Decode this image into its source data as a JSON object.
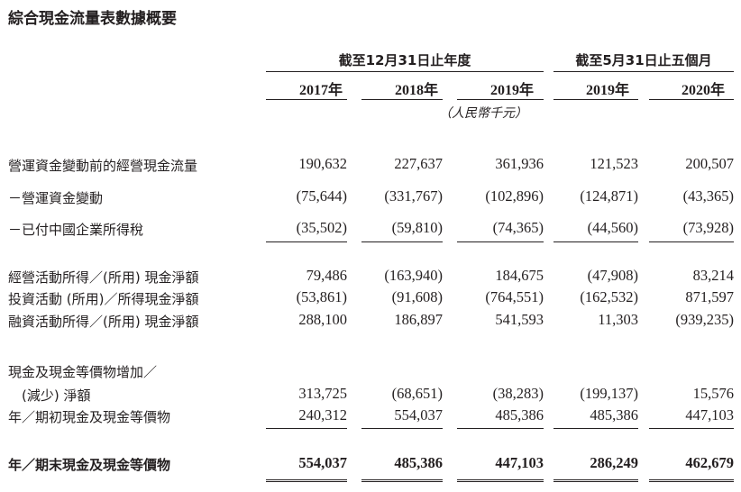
{
  "title": "綜合現金流量表數據概要",
  "column_groups": [
    {
      "label": "截至12月31日止年度"
    },
    {
      "label": "截至5月31日止五個月"
    }
  ],
  "columns": [
    "2017年",
    "2018年",
    "2019年",
    "2019年",
    "2020年"
  ],
  "unit": "（人民幣千元）",
  "rows": [
    {
      "label": "營運資金變動前的經營現金流量",
      "values": [
        "190,632",
        "227,637",
        "361,936",
        "121,523",
        "200,507"
      ]
    },
    {
      "label": "－營運資金變動",
      "values": [
        "(75,644)",
        "(331,767)",
        "(102,896)",
        "(124,871)",
        "(43,365)"
      ]
    },
    {
      "label": "－已付中國企業所得稅",
      "values": [
        "(35,502)",
        "(59,810)",
        "(74,365)",
        "(44,560)",
        "(73,928)"
      ]
    },
    {
      "label": "經營活動所得／(所用) 現金淨額",
      "values": [
        "79,486",
        "(163,940)",
        "184,675",
        "(47,908)",
        "83,214"
      ]
    },
    {
      "label": "投資活動 (所用)／所得現金淨額",
      "values": [
        "(53,861)",
        "(91,608)",
        "(764,551)",
        "(162,532)",
        "871,597"
      ]
    },
    {
      "label": "融資活動所得／(所用) 現金淨額",
      "values": [
        "288,100",
        "186,897",
        "541,593",
        "11,303",
        "(939,235)"
      ]
    },
    {
      "label": "現金及現金等價物增加／",
      "values": [
        "",
        "",
        "",
        "",
        ""
      ]
    },
    {
      "label": "　(減少) 淨額",
      "values": [
        "313,725",
        "(68,651)",
        "(38,283)",
        "(199,137)",
        "15,576"
      ]
    },
    {
      "label": "年／期初現金及現金等價物",
      "values": [
        "240,312",
        "554,037",
        "485,386",
        "485,386",
        "447,103"
      ]
    },
    {
      "label": "年／期末現金及現金等價物",
      "values": [
        "554,037",
        "485,386",
        "447,103",
        "286,249",
        "462,679"
      ]
    }
  ]
}
